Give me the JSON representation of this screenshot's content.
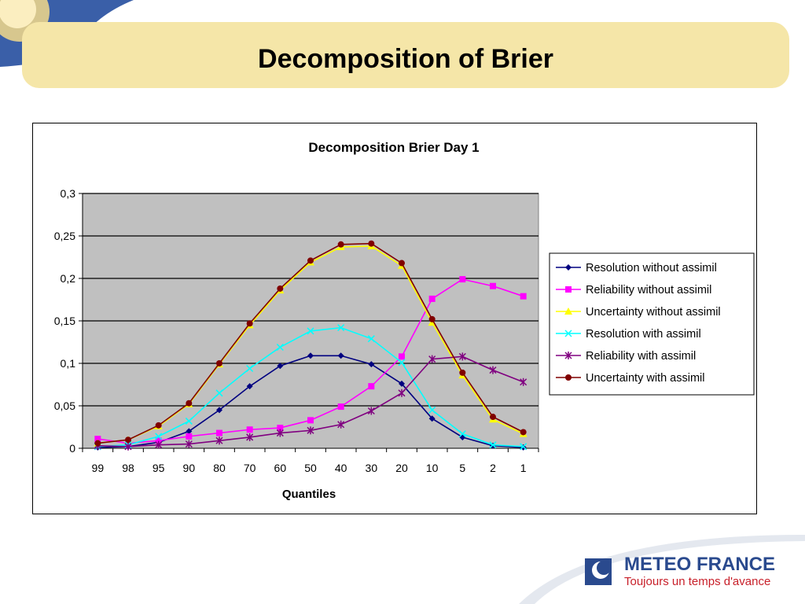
{
  "slide": {
    "title": "Decomposition of Brier"
  },
  "logo": {
    "brand": "METEO FRANCE",
    "tagline": "Toujours un temps d'avance"
  },
  "chart_data": {
    "type": "line",
    "title": "Decomposition Brier Day 1",
    "xlabel": "Quantiles",
    "ylabel": "",
    "categories": [
      "99",
      "98",
      "95",
      "90",
      "80",
      "70",
      "60",
      "50",
      "40",
      "30",
      "20",
      "10",
      "5",
      "2",
      "1"
    ],
    "ylim": [
      0,
      0.3
    ],
    "yticks": [
      "0",
      "0,05",
      "0,1",
      "0,15",
      "0,2",
      "0,25",
      "0,3"
    ],
    "grid": true,
    "legend": "right",
    "plot_background": "#c0c0c0",
    "series": [
      {
        "name": "Resolution without assimil",
        "color": "#000080",
        "marker": "diamond",
        "values": [
          0.001,
          0.002,
          0.007,
          0.02,
          0.045,
          0.073,
          0.097,
          0.109,
          0.109,
          0.099,
          0.076,
          0.035,
          0.013,
          0.003,
          0.001
        ]
      },
      {
        "name": "Reliability without assimil",
        "color": "#ff00ff",
        "marker": "square",
        "values": [
          0.011,
          0.006,
          0.009,
          0.014,
          0.018,
          0.022,
          0.024,
          0.033,
          0.049,
          0.073,
          0.108,
          0.176,
          0.199,
          0.191,
          0.179
        ]
      },
      {
        "name": "Uncertainty without assimil",
        "color": "#ffff00",
        "marker": "triangle",
        "values": [
          0.006,
          0.01,
          0.026,
          0.052,
          0.099,
          0.145,
          0.186,
          0.219,
          0.237,
          0.238,
          0.215,
          0.148,
          0.086,
          0.034,
          0.017
        ]
      },
      {
        "name": "Resolution with assimil",
        "color": "#00ffff",
        "marker": "x",
        "values": [
          0.002,
          0.004,
          0.014,
          0.032,
          0.065,
          0.094,
          0.119,
          0.138,
          0.142,
          0.129,
          0.101,
          0.045,
          0.017,
          0.004,
          0.002
        ]
      },
      {
        "name": "Reliability with assimil",
        "color": "#800080",
        "marker": "star",
        "values": [
          0.003,
          0.002,
          0.004,
          0.005,
          0.009,
          0.013,
          0.018,
          0.021,
          0.028,
          0.044,
          0.065,
          0.105,
          0.108,
          0.092,
          0.078
        ]
      },
      {
        "name": "Uncertainty with assimil",
        "color": "#800000",
        "marker": "circle",
        "values": [
          0.006,
          0.01,
          0.027,
          0.053,
          0.1,
          0.147,
          0.188,
          0.221,
          0.24,
          0.241,
          0.218,
          0.152,
          0.089,
          0.037,
          0.019
        ]
      }
    ]
  }
}
